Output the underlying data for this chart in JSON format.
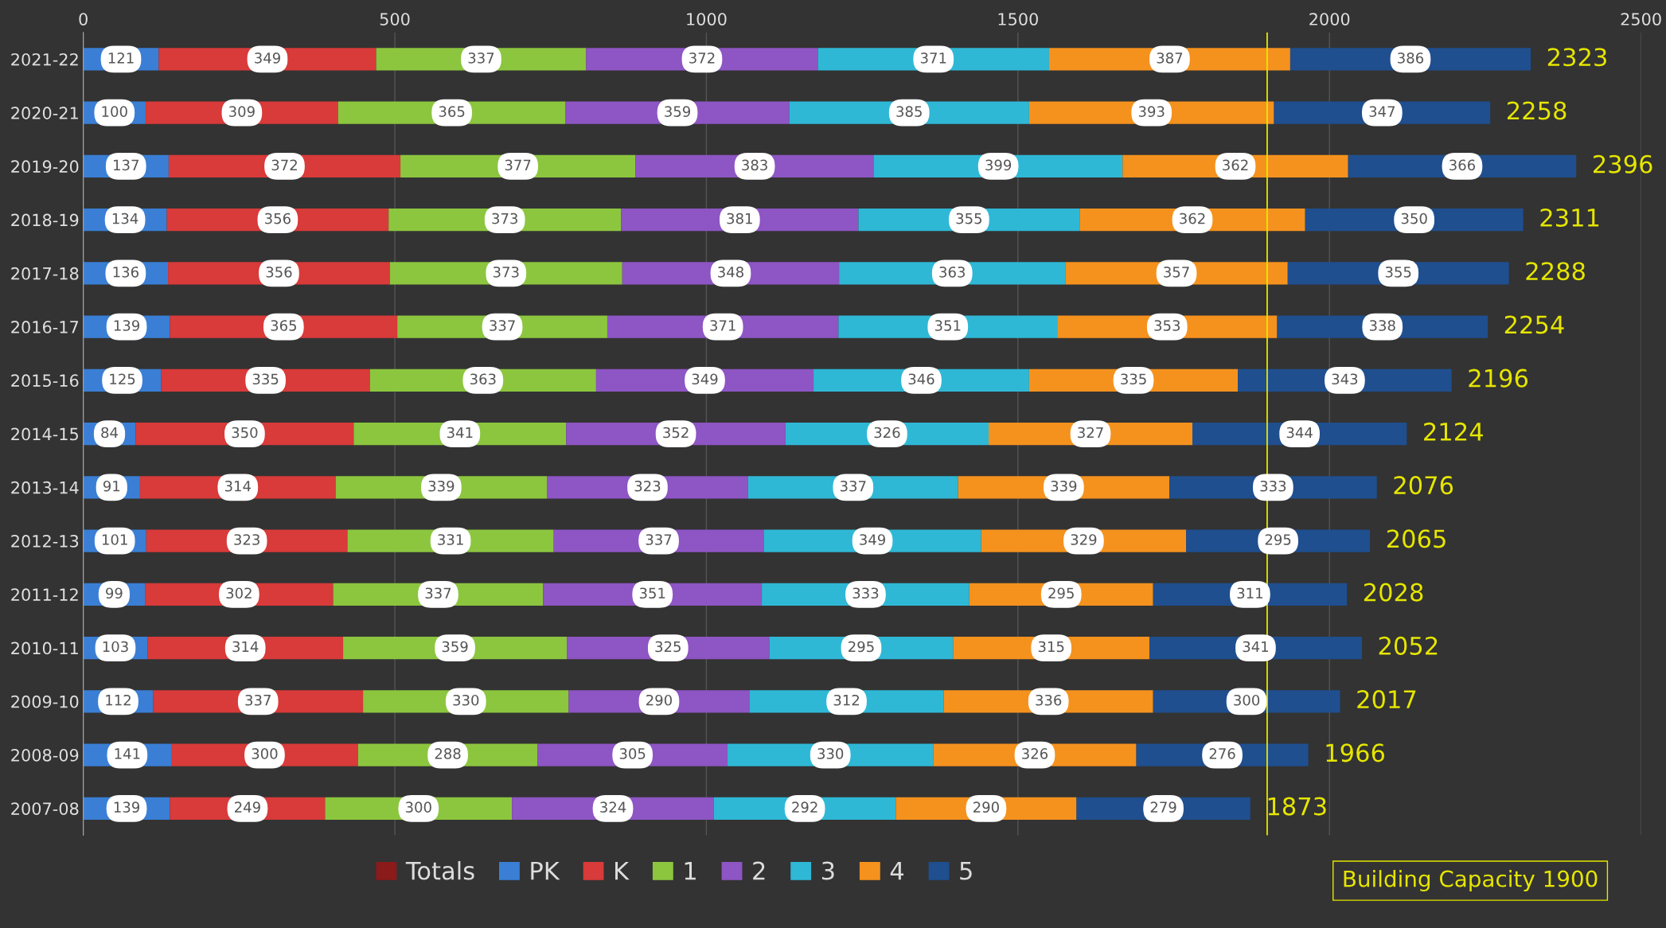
{
  "chart_data": {
    "type": "bar",
    "orientation": "horizontal",
    "stacked": true,
    "data_labels": true,
    "categories": [
      "2021-22",
      "2020-21",
      "2019-20",
      "2018-19",
      "2017-18",
      "2016-17",
      "2015-16",
      "2014-15",
      "2013-14",
      "2012-13",
      "2011-12",
      "2010-11",
      "2009-10",
      "2008-09",
      "2007-08"
    ],
    "series": [
      {
        "name": "Totals",
        "color": "#8b1a1a",
        "values": [
          null,
          null,
          null,
          null,
          null,
          null,
          null,
          null,
          null,
          null,
          null,
          null,
          null,
          null,
          null
        ]
      },
      {
        "name": "PK",
        "color": "#3a7fd5",
        "values": [
          121,
          100,
          137,
          134,
          136,
          139,
          125,
          84,
          91,
          101,
          99,
          103,
          112,
          141,
          139
        ]
      },
      {
        "name": "K",
        "color": "#d93a3a",
        "values": [
          349,
          309,
          372,
          356,
          356,
          365,
          335,
          350,
          314,
          323,
          302,
          314,
          337,
          300,
          249
        ]
      },
      {
        "name": "1",
        "color": "#8cc63f",
        "values": [
          337,
          365,
          377,
          373,
          373,
          337,
          363,
          341,
          339,
          331,
          337,
          359,
          330,
          288,
          300
        ]
      },
      {
        "name": "2",
        "color": "#8e55c4",
        "values": [
          372,
          359,
          383,
          381,
          348,
          371,
          349,
          352,
          323,
          337,
          351,
          325,
          290,
          305,
          324
        ]
      },
      {
        "name": "3",
        "color": "#2fb8d6",
        "values": [
          371,
          385,
          399,
          355,
          363,
          351,
          346,
          326,
          337,
          349,
          333,
          295,
          312,
          330,
          292
        ]
      },
      {
        "name": "4",
        "color": "#f5921e",
        "values": [
          387,
          393,
          362,
          362,
          357,
          353,
          335,
          327,
          339,
          329,
          295,
          315,
          336,
          326,
          290
        ]
      },
      {
        "name": "5",
        "color": "#1f4f8f",
        "values": [
          386,
          347,
          366,
          350,
          355,
          338,
          343,
          344,
          333,
          295,
          311,
          341,
          300,
          276,
          279
        ]
      }
    ],
    "totals": [
      "2323",
      "2258",
      "2396",
      "2311",
      "2288",
      "2254",
      "2196",
      "2124",
      "2076",
      "2065",
      "2028",
      "2052",
      "2017",
      "1966",
      "1873"
    ],
    "xlim": [
      0,
      2500
    ],
    "xticks": [
      0,
      500,
      1000,
      1500,
      2000,
      2500
    ],
    "grid": "x",
    "legend": "bottom",
    "ref_lines": [
      {
        "axis": "x",
        "value": 1900,
        "label": "Building Capacity 1900",
        "color": "#e6e600"
      }
    ]
  }
}
